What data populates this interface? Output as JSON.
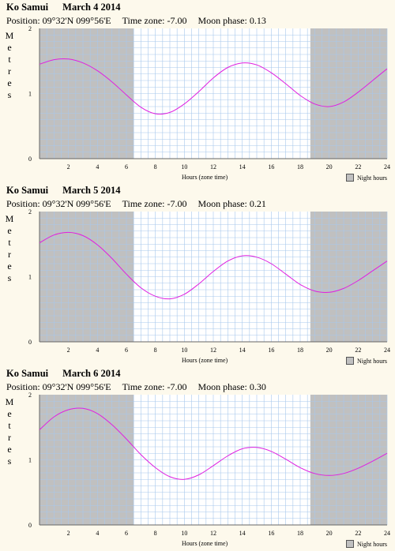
{
  "chart_data": [
    {
      "type": "line",
      "title": "Ko Samui",
      "date": "March 4 2014",
      "position_label": "Position: 09°32'N 099°56'E",
      "timezone_label": "Time zone:  -7.00",
      "moon_label": "Moon phase: 0.13",
      "ylabel": "Metres",
      "xlabel": "Hours (zone time)",
      "legend": "Night hours",
      "ylim": [
        0,
        2
      ],
      "xlim": [
        0,
        24
      ],
      "yticks": [
        "0",
        "1",
        "2"
      ],
      "xticks": [
        "2",
        "4",
        "6",
        "8",
        "10",
        "12",
        "14",
        "16",
        "18",
        "20",
        "22",
        "24"
      ],
      "night": [
        [
          0,
          6.5
        ],
        [
          18.7,
          24
        ]
      ],
      "x": [
        0,
        1,
        2,
        3,
        4,
        5,
        6,
        7,
        8,
        9,
        10,
        11,
        12,
        13,
        14,
        15,
        16,
        17,
        18,
        19,
        20,
        21,
        22,
        23,
        24
      ],
      "y": [
        1.45,
        1.52,
        1.53,
        1.47,
        1.35,
        1.18,
        0.98,
        0.79,
        0.69,
        0.71,
        0.84,
        1.03,
        1.24,
        1.4,
        1.47,
        1.44,
        1.32,
        1.15,
        0.97,
        0.84,
        0.8,
        0.87,
        1.02,
        1.2,
        1.38
      ],
      "line_color": "#e020e0"
    },
    {
      "type": "line",
      "title": "Ko Samui",
      "date": "March 5 2014",
      "position_label": "Position: 09°32'N 099°56'E",
      "timezone_label": "Time zone:  -7.00",
      "moon_label": "Moon phase: 0.21",
      "ylabel": "Metres",
      "xlabel": "Hours (zone time)",
      "legend": "Night hours",
      "ylim": [
        0,
        2
      ],
      "xlim": [
        0,
        24
      ],
      "yticks": [
        "0",
        "1",
        "2"
      ],
      "xticks": [
        "2",
        "4",
        "6",
        "8",
        "10",
        "12",
        "14",
        "16",
        "18",
        "20",
        "22",
        "24"
      ],
      "night": [
        [
          0,
          6.5
        ],
        [
          18.7,
          24
        ]
      ],
      "x": [
        0,
        1,
        2,
        3,
        4,
        5,
        6,
        7,
        8,
        9,
        10,
        11,
        12,
        13,
        14,
        15,
        16,
        17,
        18,
        19,
        20,
        21,
        22,
        23,
        24
      ],
      "y": [
        1.52,
        1.64,
        1.68,
        1.63,
        1.49,
        1.28,
        1.04,
        0.83,
        0.7,
        0.66,
        0.73,
        0.89,
        1.08,
        1.24,
        1.32,
        1.3,
        1.2,
        1.04,
        0.88,
        0.78,
        0.76,
        0.82,
        0.94,
        1.09,
        1.24
      ],
      "line_color": "#e020e0"
    },
    {
      "type": "line",
      "title": "Ko Samui",
      "date": "March 6 2014",
      "position_label": "Position: 09°32'N 099°56'E",
      "timezone_label": "Time zone:  -7.00",
      "moon_label": "Moon phase: 0.30",
      "ylabel": "Metres",
      "xlabel": "Hours (zone time)",
      "legend": "Night hours",
      "ylim": [
        0,
        2
      ],
      "xlim": [
        0,
        24
      ],
      "yticks": [
        "0",
        "1",
        "2"
      ],
      "xticks": [
        "2",
        "4",
        "6",
        "8",
        "10",
        "12",
        "14",
        "16",
        "18",
        "20",
        "22",
        "24"
      ],
      "night": [
        [
          0,
          6.5
        ],
        [
          18.7,
          24
        ]
      ],
      "x": [
        0,
        1,
        2,
        3,
        4,
        5,
        6,
        7,
        8,
        9,
        10,
        11,
        12,
        13,
        14,
        15,
        16,
        17,
        18,
        19,
        20,
        21,
        22,
        23,
        24
      ],
      "y": [
        1.46,
        1.66,
        1.77,
        1.79,
        1.71,
        1.54,
        1.32,
        1.08,
        0.88,
        0.74,
        0.7,
        0.77,
        0.91,
        1.06,
        1.17,
        1.19,
        1.13,
        1.01,
        0.88,
        0.79,
        0.76,
        0.79,
        0.87,
        0.98,
        1.1
      ],
      "line_color": "#e020e0"
    }
  ]
}
